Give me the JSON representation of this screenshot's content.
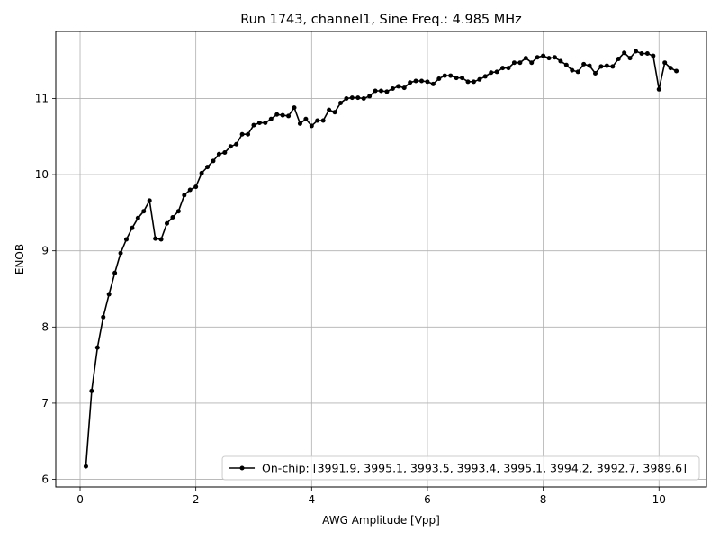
{
  "chart_data": {
    "type": "line",
    "title": "Run 1743, channel1, Sine Freq.: 4.985 MHz",
    "xlabel": "AWG Amplitude [Vpp]",
    "ylabel": "ENOB",
    "xlim": [
      -0.42,
      10.82
    ],
    "ylim": [
      5.9,
      11.88
    ],
    "xticks": [
      0,
      2,
      4,
      6,
      8,
      10
    ],
    "yticks": [
      6,
      7,
      8,
      9,
      10,
      11
    ],
    "grid": true,
    "legend_position": "lower-right",
    "line_color": "#000000",
    "series": [
      {
        "name": "On-chip: [3991.9, 3995.1, 3993.5, 3993.4, 3995.1, 3994.2, 3992.7, 3989.6]",
        "x": [
          0.1,
          0.2,
          0.3,
          0.4,
          0.5,
          0.6,
          0.7,
          0.8,
          0.9,
          1.0,
          1.1,
          1.2,
          1.3,
          1.4,
          1.5,
          1.6,
          1.7,
          1.8,
          1.9,
          2.0,
          2.1,
          2.2,
          2.3,
          2.4,
          2.5,
          2.6,
          2.7,
          2.8,
          2.9,
          3.0,
          3.1,
          3.2,
          3.3,
          3.4,
          3.5,
          3.6,
          3.7,
          3.8,
          3.9,
          4.0,
          4.1,
          4.2,
          4.3,
          4.4,
          4.5,
          4.6,
          4.7,
          4.8,
          4.9,
          5.0,
          5.1,
          5.2,
          5.3,
          5.4,
          5.5,
          5.6,
          5.7,
          5.8,
          5.9,
          6.0,
          6.1,
          6.2,
          6.3,
          6.4,
          6.5,
          6.6,
          6.7,
          6.8,
          6.9,
          7.0,
          7.1,
          7.2,
          7.3,
          7.4,
          7.5,
          7.6,
          7.7,
          7.8,
          7.9,
          8.0,
          8.1,
          8.2,
          8.3,
          8.4,
          8.5,
          8.6,
          8.7,
          8.8,
          8.9,
          9.0,
          9.1,
          9.2,
          9.3,
          9.4,
          9.5,
          9.6,
          9.7,
          9.8,
          9.9,
          10.0,
          10.1,
          10.2,
          10.3
        ],
        "y": [
          6.17,
          7.16,
          7.73,
          8.13,
          8.43,
          8.71,
          8.97,
          9.15,
          9.3,
          9.43,
          9.52,
          9.66,
          9.16,
          9.15,
          9.36,
          9.44,
          9.52,
          9.73,
          9.8,
          9.84,
          10.02,
          10.1,
          10.18,
          10.27,
          10.29,
          10.37,
          10.4,
          10.53,
          10.53,
          10.65,
          10.68,
          10.68,
          10.73,
          10.79,
          10.78,
          10.77,
          10.88,
          10.67,
          10.73,
          10.64,
          10.71,
          10.71,
          10.85,
          10.82,
          10.94,
          11.0,
          11.01,
          11.01,
          11.0,
          11.03,
          11.1,
          11.1,
          11.09,
          11.13,
          11.16,
          11.14,
          11.21,
          11.23,
          11.23,
          11.22,
          11.19,
          11.26,
          11.3,
          11.3,
          11.27,
          11.27,
          11.22,
          11.22,
          11.25,
          11.29,
          11.34,
          11.35,
          11.4,
          11.4,
          11.47,
          11.47,
          11.53,
          11.47,
          11.54,
          11.56,
          11.53,
          11.54,
          11.49,
          11.44,
          11.37,
          11.35,
          11.45,
          11.43,
          11.33,
          11.42,
          11.43,
          11.42,
          11.52,
          11.6,
          11.53,
          11.62,
          11.59,
          11.59,
          11.56,
          11.12,
          11.47,
          11.4,
          11.36
        ]
      }
    ]
  }
}
